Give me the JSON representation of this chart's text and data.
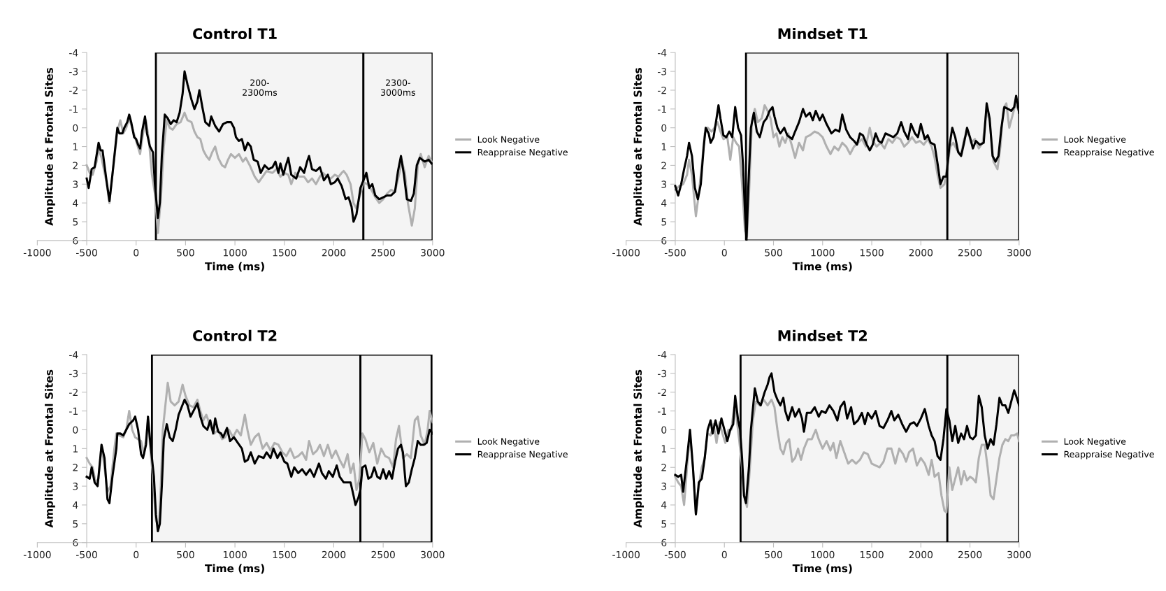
{
  "chart_data": [
    {
      "type": "line",
      "title": "Control T1",
      "xlabel": "Time (ms)",
      "ylabel": "Amplitude at Frontal Sites",
      "xlim": [
        -1000,
        3000
      ],
      "ylim": [
        6,
        -4
      ],
      "xticks": [
        -1000,
        -500,
        0,
        500,
        1000,
        1500,
        2000,
        2500,
        3000
      ],
      "yticks": [
        -4,
        -3,
        -2,
        -1,
        0,
        1,
        2,
        3,
        4,
        5,
        6
      ],
      "grid": false,
      "legend": "right",
      "marker": "none",
      "line_style": "solid",
      "bands": [
        {
          "axis": "x",
          "from": 200,
          "to": 2300,
          "label": "200-\n2300ms",
          "color": "#000000"
        },
        {
          "axis": "x",
          "from": 2300,
          "to": 3000,
          "label": "2300-\n3000ms",
          "color": "#000000"
        }
      ],
      "series": [
        {
          "name": "Look Negative",
          "color": "#b0b0b0",
          "x": [
            -500,
            -470,
            -440,
            -400,
            -380,
            -350,
            -300,
            -270,
            -240,
            -190,
            -160,
            -130,
            -100,
            -70,
            -40,
            0,
            40,
            70,
            100,
            130,
            160,
            190,
            220,
            250,
            280,
            310,
            340,
            370,
            410,
            450,
            490,
            520,
            560,
            590,
            620,
            650,
            680,
            710,
            740,
            770,
            800,
            830,
            870,
            900,
            930,
            960,
            1000,
            1040,
            1080,
            1110,
            1150,
            1200,
            1240,
            1280,
            1320,
            1380,
            1420,
            1460,
            1500,
            1540,
            1570,
            1610,
            1650,
            1700,
            1740,
            1780,
            1820,
            1860,
            1890,
            1930,
            1970,
            2010,
            2050,
            2080,
            2100,
            2130,
            2170,
            2200,
            2230,
            2260,
            2300,
            2340,
            2380,
            2420,
            2460,
            2500,
            2540,
            2580,
            2620,
            2660,
            2690,
            2720,
            2750,
            2790,
            2820,
            2850,
            2880,
            2920,
            2960,
            2990
          ],
          "values": [
            2.0,
            2.4,
            2.5,
            1.8,
            1.1,
            1.6,
            2.9,
            4.0,
            2.5,
            0.2,
            -0.4,
            0.3,
            0.0,
            -0.5,
            0.0,
            0.7,
            1.4,
            0.3,
            -0.4,
            0.7,
            2.5,
            3.5,
            5.6,
            3.8,
            1.0,
            -0.4,
            0.0,
            0.1,
            -0.2,
            -0.3,
            -0.8,
            -0.4,
            -0.3,
            0.2,
            0.5,
            0.6,
            1.2,
            1.5,
            1.7,
            1.3,
            1.0,
            1.6,
            2.0,
            2.1,
            1.7,
            1.4,
            1.6,
            1.4,
            1.8,
            1.6,
            2.0,
            2.6,
            2.9,
            2.6,
            2.3,
            2.4,
            2.2,
            2.6,
            2.4,
            2.5,
            3.0,
            2.4,
            2.6,
            2.6,
            2.9,
            2.7,
            3.0,
            2.6,
            2.4,
            2.6,
            2.7,
            2.5,
            2.6,
            2.4,
            2.3,
            2.5,
            3.0,
            4.0,
            4.3,
            3.7,
            2.9,
            3.0,
            3.3,
            3.7,
            4.0,
            3.8,
            3.5,
            3.3,
            3.4,
            2.5,
            1.8,
            2.4,
            4.0,
            5.2,
            4.3,
            2.0,
            1.4,
            2.1,
            1.5,
            1.8
          ]
        },
        {
          "name": "Reappraise Negative",
          "color": "#000000",
          "x": [
            -500,
            -480,
            -450,
            -420,
            -380,
            -360,
            -340,
            -300,
            -270,
            -240,
            -190,
            -170,
            -140,
            -120,
            -90,
            -70,
            -50,
            -20,
            0,
            20,
            40,
            60,
            90,
            110,
            140,
            170,
            190,
            220,
            240,
            260,
            290,
            320,
            350,
            380,
            410,
            440,
            470,
            490,
            520,
            560,
            590,
            620,
            640,
            670,
            700,
            740,
            760,
            800,
            840,
            880,
            920,
            960,
            990,
            1010,
            1040,
            1070,
            1100,
            1130,
            1160,
            1190,
            1230,
            1260,
            1300,
            1340,
            1380,
            1410,
            1440,
            1460,
            1490,
            1510,
            1540,
            1570,
            1620,
            1660,
            1700,
            1730,
            1750,
            1780,
            1820,
            1860,
            1900,
            1940,
            1970,
            2010,
            2040,
            2080,
            2120,
            2150,
            2180,
            2200,
            2230,
            2270,
            2300,
            2330,
            2360,
            2390,
            2420,
            2460,
            2500,
            2540,
            2580,
            2620,
            2650,
            2680,
            2710,
            2740,
            2780,
            2810,
            2840,
            2870,
            2920,
            2960,
            2990
          ],
          "values": [
            2.7,
            3.2,
            2.2,
            2.1,
            0.8,
            1.2,
            1.2,
            2.8,
            3.9,
            2.5,
            0.0,
            0.3,
            0.3,
            0.0,
            -0.3,
            -0.7,
            -0.3,
            0.5,
            0.6,
            0.9,
            1.1,
            0.2,
            -0.6,
            0.3,
            1.0,
            1.3,
            3.0,
            4.8,
            4.0,
            1.5,
            -0.7,
            -0.5,
            -0.2,
            -0.4,
            -0.3,
            -0.8,
            -1.8,
            -3.0,
            -2.3,
            -1.5,
            -1.0,
            -1.4,
            -2.0,
            -1.1,
            -0.3,
            -0.1,
            -0.6,
            -0.1,
            0.2,
            -0.2,
            -0.3,
            -0.3,
            0.0,
            0.5,
            0.7,
            0.6,
            1.2,
            0.8,
            1.0,
            1.7,
            1.8,
            2.4,
            2.0,
            2.2,
            2.1,
            1.8,
            2.4,
            1.9,
            2.5,
            2.1,
            1.6,
            2.5,
            2.7,
            2.1,
            2.4,
            1.8,
            1.5,
            2.2,
            2.3,
            2.1,
            2.8,
            2.5,
            3.0,
            2.9,
            2.7,
            3.1,
            3.8,
            3.7,
            4.2,
            5.0,
            4.6,
            3.2,
            2.8,
            2.4,
            3.2,
            3.0,
            3.6,
            3.8,
            3.7,
            3.6,
            3.6,
            3.4,
            2.3,
            1.5,
            2.5,
            3.8,
            3.9,
            3.5,
            2.0,
            1.6,
            1.8,
            1.7,
            1.9
          ]
        }
      ]
    },
    {
      "type": "line",
      "title": "Mindset T1",
      "xlabel": "Time (ms)",
      "ylabel": "Amplitude at Frontal Sites",
      "xlim": [
        -1000,
        3000
      ],
      "ylim": [
        6,
        -4
      ],
      "xticks": [
        -1000,
        -500,
        0,
        500,
        1000,
        1500,
        2000,
        2500,
        3000
      ],
      "yticks": [
        -4,
        -3,
        -2,
        -1,
        0,
        1,
        2,
        3,
        4,
        5,
        6
      ],
      "grid": false,
      "legend": "right",
      "marker": "none",
      "line_style": "solid",
      "bands": [
        {
          "axis": "x",
          "from": 220,
          "to": 2270,
          "color": "#000000"
        },
        {
          "axis": "x",
          "from": 2270,
          "to": 3000,
          "color": "#000000"
        }
      ],
      "series": [
        {
          "name": "Look Negative",
          "color": "#b0b0b0",
          "x": [
            -500,
            -460,
            -420,
            -380,
            -360,
            -330,
            -290,
            -260,
            -230,
            -200,
            -170,
            -130,
            -100,
            -70,
            -40,
            -10,
            30,
            60,
            90,
            120,
            150,
            180,
            210,
            230,
            255,
            280,
            310,
            340,
            380,
            410,
            440,
            470,
            500,
            530,
            560,
            590,
            620,
            650,
            690,
            720,
            760,
            800,
            830,
            870,
            920,
            960,
            1000,
            1040,
            1080,
            1120,
            1160,
            1200,
            1240,
            1280,
            1320,
            1360,
            1400,
            1440,
            1480,
            1510,
            1550,
            1590,
            1630,
            1670,
            1710,
            1750,
            1790,
            1830,
            1870,
            1910,
            1950,
            1990,
            2030,
            2070,
            2110,
            2140,
            2170,
            2200,
            2240,
            2270,
            2300,
            2330,
            2370,
            2410,
            2440,
            2480,
            2510,
            2550,
            2590,
            2630,
            2670,
            2700,
            2740,
            2780,
            2810,
            2840,
            2870,
            2900,
            2930,
            2960,
            2990
          ],
          "values": [
            3.3,
            3.1,
            3.0,
            2.5,
            1.7,
            2.5,
            4.7,
            3.5,
            2.0,
            0.3,
            0.0,
            0.2,
            0.0,
            -0.3,
            0.2,
            0.6,
            0.5,
            1.7,
            0.5,
            0.8,
            1.0,
            3.0,
            5.5,
            5.8,
            3.0,
            -0.3,
            -1.0,
            -0.3,
            -0.5,
            -1.2,
            -0.9,
            -0.5,
            0.5,
            0.3,
            1.0,
            0.5,
            0.8,
            0.3,
            1.0,
            1.6,
            0.8,
            1.2,
            0.5,
            0.4,
            0.2,
            0.3,
            0.5,
            1.0,
            1.4,
            1.0,
            1.2,
            0.8,
            1.0,
            1.4,
            1.0,
            0.8,
            0.6,
            1.0,
            0.0,
            0.7,
            1.0,
            0.8,
            1.1,
            0.6,
            0.8,
            0.5,
            0.6,
            1.0,
            0.8,
            0.5,
            0.8,
            0.7,
            0.9,
            0.6,
            1.0,
            1.6,
            2.5,
            3.2,
            3.0,
            2.0,
            1.0,
            0.8,
            1.2,
            1.4,
            0.6,
            0.2,
            0.8,
            0.6,
            1.1,
            0.8,
            -1.0,
            -0.3,
            1.8,
            2.2,
            1.0,
            -1.0,
            -1.3,
            0.0,
            -0.6,
            -1.2,
            -1.0
          ]
        },
        {
          "name": "Reappraise Negative",
          "color": "#000000",
          "x": [
            -500,
            -470,
            -440,
            -410,
            -380,
            -360,
            -330,
            -300,
            -270,
            -240,
            -210,
            -190,
            -160,
            -140,
            -110,
            -80,
            -60,
            -40,
            -10,
            20,
            50,
            80,
            110,
            140,
            170,
            190,
            210,
            225,
            245,
            270,
            300,
            330,
            360,
            400,
            430,
            460,
            490,
            510,
            540,
            570,
            610,
            640,
            690,
            720,
            760,
            800,
            830,
            870,
            900,
            930,
            970,
            1000,
            1040,
            1090,
            1130,
            1170,
            1200,
            1240,
            1280,
            1320,
            1350,
            1380,
            1410,
            1450,
            1480,
            1510,
            1540,
            1570,
            1600,
            1640,
            1680,
            1720,
            1760,
            1800,
            1830,
            1870,
            1900,
            1940,
            1970,
            2000,
            2040,
            2070,
            2100,
            2140,
            2170,
            2200,
            2230,
            2260,
            2290,
            2320,
            2350,
            2380,
            2410,
            2440,
            2470,
            2500,
            2530,
            2560,
            2600,
            2640,
            2670,
            2700,
            2730,
            2760,
            2790,
            2820,
            2850,
            2890,
            2920,
            2950,
            2970,
            3000
          ],
          "values": [
            3.1,
            3.6,
            3.0,
            2.2,
            1.5,
            0.8,
            1.5,
            3.2,
            3.8,
            3.0,
            1.0,
            0.0,
            0.3,
            0.8,
            0.5,
            -0.5,
            -1.2,
            -0.5,
            0.4,
            0.5,
            0.2,
            0.5,
            -1.1,
            0.0,
            0.4,
            2.0,
            4.5,
            6.0,
            3.0,
            0.0,
            -0.8,
            0.2,
            0.5,
            -0.3,
            -0.5,
            -0.9,
            -1.1,
            -0.6,
            0.0,
            0.3,
            0.0,
            0.4,
            0.6,
            0.2,
            -0.3,
            -1.0,
            -0.6,
            -0.8,
            -0.4,
            -0.9,
            -0.4,
            -0.7,
            -0.2,
            0.3,
            0.1,
            0.2,
            -0.7,
            0.1,
            0.5,
            0.7,
            0.9,
            0.3,
            0.4,
            0.9,
            1.2,
            0.9,
            0.3,
            0.7,
            0.8,
            0.3,
            0.4,
            0.5,
            0.3,
            -0.3,
            0.2,
            0.6,
            -0.2,
            0.3,
            0.5,
            -0.2,
            0.6,
            0.4,
            0.8,
            0.9,
            1.9,
            3.0,
            2.6,
            2.6,
            1.0,
            0.0,
            0.5,
            1.3,
            1.5,
            0.8,
            0.0,
            0.5,
            1.1,
            0.7,
            0.9,
            0.8,
            -1.3,
            -0.5,
            1.5,
            1.8,
            1.5,
            0.0,
            -1.1,
            -1.0,
            -0.9,
            -1.1,
            -1.7,
            -0.8
          ]
        }
      ]
    },
    {
      "type": "line",
      "title": "Control T2",
      "xlabel": "Time (ms)",
      "ylabel": "Amplitude at Frontal Sites",
      "xlim": [
        -1000,
        3000
      ],
      "ylim": [
        6,
        -4
      ],
      "xticks": [
        -1000,
        -500,
        0,
        500,
        1000,
        1500,
        2000,
        2500,
        3000
      ],
      "yticks": [
        -4,
        -3,
        -2,
        -1,
        0,
        1,
        2,
        3,
        4,
        5,
        6
      ],
      "grid": false,
      "legend": "right",
      "marker": "none",
      "line_style": "solid",
      "bands": [
        {
          "axis": "x",
          "from": 160,
          "to": 2270,
          "color": "#000000"
        },
        {
          "axis": "x",
          "from": 2270,
          "to": 2990,
          "color": "#000000"
        }
      ],
      "series": [
        {
          "name": "Look Negative",
          "color": "#b0b0b0",
          "x": [
            -500,
            -470,
            -440,
            -410,
            -380,
            -350,
            -320,
            -290,
            -260,
            -220,
            -200,
            -170,
            -130,
            -100,
            -70,
            -40,
            -10,
            20,
            50,
            80,
            100,
            120,
            140,
            170,
            200,
            230,
            250,
            270,
            300,
            320,
            350,
            390,
            430,
            470,
            500,
            540,
            580,
            620,
            650,
            680,
            710,
            750,
            790,
            830,
            870,
            900,
            940,
            980,
            1020,
            1060,
            1100,
            1130,
            1160,
            1200,
            1240,
            1280,
            1320,
            1360,
            1400,
            1440,
            1480,
            1520,
            1560,
            1600,
            1640,
            1680,
            1720,
            1750,
            1790,
            1830,
            1860,
            1900,
            1940,
            1980,
            2020,
            2060,
            2100,
            2140,
            2170,
            2200,
            2230,
            2260,
            2290,
            2320,
            2360,
            2400,
            2440,
            2480,
            2520,
            2560,
            2600,
            2630,
            2660,
            2700,
            2740,
            2780,
            2820,
            2850,
            2880,
            2920,
            2950,
            2970,
            3000
          ],
          "values": [
            1.5,
            1.8,
            2.0,
            2.8,
            2.6,
            0.8,
            2.0,
            3.3,
            3.0,
            1.0,
            0.2,
            0.3,
            0.4,
            0.0,
            -1.0,
            0.0,
            0.4,
            0.5,
            0.6,
            1.3,
            0.5,
            -0.5,
            0.8,
            2.5,
            4.8,
            5.2,
            3.0,
            0.0,
            -1.5,
            -2.5,
            -1.5,
            -1.3,
            -1.5,
            -2.4,
            -1.8,
            -1.3,
            -1.2,
            -1.6,
            -1.0,
            -0.5,
            -0.8,
            -0.2,
            0.2,
            0.0,
            0.5,
            0.4,
            0.0,
            0.4,
            0.0,
            0.3,
            -0.8,
            0.1,
            0.8,
            0.4,
            0.2,
            1.0,
            0.7,
            1.1,
            0.7,
            0.8,
            1.2,
            1.4,
            1.0,
            1.5,
            1.4,
            1.2,
            1.6,
            0.6,
            1.3,
            1.1,
            0.8,
            1.4,
            0.8,
            1.5,
            1.1,
            1.6,
            2.0,
            1.3,
            2.3,
            1.8,
            3.2,
            2.6,
            0.2,
            0.5,
            1.2,
            0.7,
            1.8,
            1.0,
            1.4,
            1.5,
            2.0,
            0.5,
            -0.2,
            1.5,
            1.3,
            1.5,
            -0.5,
            -0.7,
            0.3,
            0.8,
            0.0,
            -1.0,
            -0.4
          ]
        },
        {
          "name": "Reappraise Negative",
          "color": "#000000",
          "x": [
            -500,
            -470,
            -450,
            -420,
            -390,
            -350,
            -320,
            -290,
            -270,
            -240,
            -200,
            -190,
            -160,
            -130,
            -100,
            -70,
            -30,
            -10,
            20,
            50,
            70,
            100,
            120,
            140,
            160,
            180,
            200,
            220,
            240,
            260,
            280,
            310,
            340,
            370,
            400,
            430,
            460,
            490,
            520,
            550,
            580,
            620,
            650,
            680,
            720,
            750,
            780,
            800,
            830,
            860,
            880,
            920,
            950,
            990,
            1030,
            1070,
            1100,
            1130,
            1160,
            1200,
            1240,
            1290,
            1320,
            1360,
            1390,
            1430,
            1460,
            1500,
            1530,
            1570,
            1600,
            1640,
            1680,
            1720,
            1760,
            1800,
            1850,
            1880,
            1920,
            1950,
            1990,
            2030,
            2060,
            2100,
            2140,
            2170,
            2200,
            2220,
            2250,
            2270,
            2290,
            2320,
            2350,
            2380,
            2410,
            2440,
            2470,
            2500,
            2530,
            2560,
            2590,
            2620,
            2650,
            2680,
            2700,
            2730,
            2760,
            2790,
            2820,
            2850,
            2880,
            2910,
            2940,
            2970,
            3000
          ],
          "values": [
            2.5,
            2.6,
            2.0,
            2.8,
            3.0,
            0.8,
            1.5,
            3.7,
            3.9,
            2.5,
            1.0,
            0.2,
            0.2,
            0.3,
            0.0,
            -0.3,
            -0.5,
            -0.7,
            0.0,
            1.3,
            1.5,
            0.8,
            -0.7,
            0.5,
            1.5,
            2.5,
            4.5,
            5.4,
            5.0,
            3.0,
            0.5,
            -0.3,
            0.4,
            0.6,
            0.0,
            -0.8,
            -1.2,
            -1.6,
            -1.3,
            -0.7,
            -1.0,
            -1.4,
            -0.7,
            -0.2,
            0.0,
            -0.5,
            0.2,
            -0.6,
            0.1,
            0.2,
            0.4,
            -0.1,
            0.6,
            0.4,
            0.7,
            1.0,
            1.7,
            1.6,
            1.2,
            1.8,
            1.4,
            1.5,
            1.2,
            1.5,
            1.0,
            1.5,
            1.2,
            1.7,
            1.8,
            2.5,
            2.0,
            2.3,
            2.1,
            2.4,
            2.1,
            2.5,
            1.8,
            2.3,
            2.6,
            2.2,
            2.5,
            1.9,
            2.5,
            2.8,
            2.8,
            2.8,
            3.5,
            4.0,
            3.6,
            3.2,
            2.0,
            1.9,
            2.6,
            2.5,
            2.0,
            2.5,
            2.6,
            2.1,
            2.6,
            2.2,
            2.6,
            1.7,
            1.0,
            0.8,
            1.2,
            3.0,
            2.8,
            2.1,
            1.5,
            0.6,
            0.8,
            0.8,
            0.7,
            0.0,
            0.2
          ]
        }
      ]
    },
    {
      "type": "line",
      "title": "Mindset T2",
      "xlabel": "Time (ms)",
      "ylabel": "Amplitude at Frontal Sites",
      "xlim": [
        -1000,
        3000
      ],
      "ylim": [
        6,
        -4
      ],
      "xticks": [
        -1000,
        -500,
        0,
        500,
        1000,
        1500,
        2000,
        2500,
        3000
      ],
      "yticks": [
        -4,
        -3,
        -2,
        -1,
        0,
        1,
        2,
        3,
        4,
        5,
        6
      ],
      "grid": false,
      "legend": "right",
      "marker": "none",
      "line_style": "solid",
      "bands": [
        {
          "axis": "x",
          "from": 165,
          "to": 2270,
          "color": "#000000"
        },
        {
          "axis": "x",
          "from": 2270,
          "to": 3000,
          "color": "#000000"
        }
      ],
      "series": [
        {
          "name": "Look Negative",
          "color": "#b0b0b0",
          "x": [
            -500,
            -470,
            -440,
            -410,
            -380,
            -350,
            -320,
            -290,
            -260,
            -230,
            -200,
            -170,
            -140,
            -110,
            -80,
            -50,
            -20,
            10,
            40,
            70,
            100,
            120,
            150,
            180,
            200,
            230,
            260,
            290,
            320,
            360,
            400,
            440,
            480,
            510,
            540,
            570,
            600,
            630,
            660,
            690,
            720,
            750,
            780,
            810,
            850,
            890,
            930,
            960,
            1000,
            1040,
            1080,
            1110,
            1140,
            1180,
            1220,
            1260,
            1300,
            1340,
            1380,
            1420,
            1460,
            1500,
            1540,
            1580,
            1620,
            1660,
            1700,
            1740,
            1780,
            1820,
            1850,
            1880,
            1920,
            1960,
            2000,
            2040,
            2080,
            2110,
            2140,
            2180,
            2210,
            2240,
            2260,
            2290,
            2320,
            2350,
            2380,
            2410,
            2440,
            2470,
            2500,
            2530,
            2560,
            2590,
            2620,
            2650,
            2680,
            2710,
            2740,
            2770,
            2800,
            2830,
            2860,
            2890,
            2920,
            2950,
            2980,
            3000
          ],
          "values": [
            2.5,
            2.8,
            3.0,
            4.0,
            2.0,
            0.2,
            2.0,
            4.5,
            3.0,
            2.0,
            1.5,
            0.2,
            0.3,
            -0.3,
            0.7,
            -0.4,
            0.2,
            0.7,
            0.0,
            0.0,
            -1.2,
            -0.8,
            0.5,
            2.0,
            3.5,
            4.1,
            2.0,
            -0.5,
            -1.5,
            -1.3,
            -1.6,
            -1.3,
            -1.6,
            -1.2,
            0.0,
            1.0,
            1.3,
            0.7,
            0.5,
            1.7,
            1.5,
            1.0,
            1.6,
            1.0,
            0.5,
            0.5,
            0.0,
            0.5,
            1.0,
            0.6,
            1.1,
            0.7,
            1.5,
            0.6,
            1.2,
            1.8,
            1.6,
            1.8,
            1.6,
            1.2,
            1.3,
            1.8,
            1.9,
            2.0,
            1.7,
            1.0,
            1.0,
            1.8,
            1.0,
            1.3,
            1.7,
            1.2,
            1.0,
            1.9,
            1.5,
            1.8,
            2.4,
            1.6,
            2.5,
            2.3,
            3.5,
            4.3,
            4.4,
            2.0,
            3.2,
            2.6,
            2.0,
            2.9,
            2.2,
            2.7,
            2.5,
            2.6,
            2.8,
            1.5,
            0.8,
            0.8,
            2.0,
            3.5,
            3.7,
            2.6,
            1.5,
            0.8,
            0.5,
            0.6,
            0.3,
            0.3,
            0.2,
            0.6
          ]
        },
        {
          "name": "Reappraise Negative",
          "color": "#000000",
          "x": [
            -500,
            -470,
            -440,
            -420,
            -380,
            -350,
            -320,
            -290,
            -260,
            -230,
            -200,
            -170,
            -140,
            -120,
            -90,
            -60,
            -30,
            0,
            30,
            60,
            90,
            110,
            140,
            160,
            180,
            200,
            220,
            250,
            270,
            310,
            340,
            370,
            410,
            440,
            460,
            480,
            510,
            540,
            570,
            600,
            620,
            650,
            690,
            720,
            760,
            790,
            810,
            840,
            880,
            920,
            960,
            990,
            1030,
            1070,
            1110,
            1150,
            1180,
            1220,
            1250,
            1290,
            1320,
            1360,
            1400,
            1430,
            1460,
            1500,
            1540,
            1580,
            1620,
            1660,
            1700,
            1730,
            1770,
            1810,
            1850,
            1890,
            1930,
            1960,
            2000,
            2040,
            2080,
            2110,
            2140,
            2170,
            2200,
            2230,
            2260,
            2290,
            2320,
            2350,
            2380,
            2410,
            2440,
            2470,
            2500,
            2530,
            2560,
            2590,
            2620,
            2650,
            2680,
            2710,
            2740,
            2770,
            2800,
            2830,
            2860,
            2890,
            2920,
            2950,
            2970,
            3000
          ],
          "values": [
            2.4,
            2.5,
            2.4,
            3.3,
            1.5,
            0.0,
            2.0,
            4.5,
            2.8,
            2.6,
            1.5,
            0.0,
            -0.5,
            0.2,
            -0.5,
            0.2,
            -0.6,
            0.0,
            0.6,
            0.0,
            -0.3,
            -1.8,
            -0.5,
            0.0,
            1.5,
            3.5,
            3.9,
            2.0,
            0.0,
            -2.2,
            -1.5,
            -1.3,
            -2.0,
            -2.4,
            -2.8,
            -3.0,
            -2.0,
            -1.6,
            -1.3,
            -1.7,
            -1.0,
            -0.5,
            -1.2,
            -0.7,
            -1.1,
            -0.6,
            0.1,
            -0.9,
            -0.9,
            -1.2,
            -0.7,
            -1.0,
            -0.9,
            -1.3,
            -1.0,
            -0.5,
            -1.2,
            -1.5,
            -0.6,
            -1.2,
            -0.3,
            -0.5,
            -0.9,
            -0.3,
            -0.9,
            -0.6,
            -1.0,
            -0.2,
            -0.1,
            -0.5,
            -1.0,
            -0.5,
            -0.8,
            -0.3,
            0.1,
            -0.3,
            -0.4,
            -0.2,
            -0.6,
            -1.1,
            -0.2,
            0.3,
            0.6,
            1.4,
            1.6,
            0.5,
            -1.1,
            -0.5,
            0.6,
            -0.2,
            0.7,
            0.2,
            0.5,
            -0.2,
            0.4,
            0.5,
            0.3,
            -1.8,
            -1.2,
            0.3,
            1.0,
            0.5,
            0.8,
            -0.3,
            -1.7,
            -1.3,
            -1.3,
            -0.9,
            -1.5,
            -2.1,
            -1.8,
            -1.3
          ]
        }
      ]
    }
  ]
}
